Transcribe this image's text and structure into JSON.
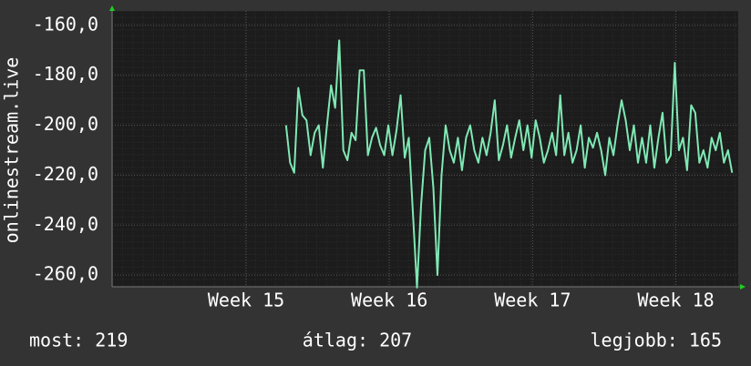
{
  "chart_data": {
    "type": "line",
    "ylabel": "onlinestream.live",
    "color": "#7fe8b4",
    "x": [
      8.5,
      8.7,
      8.9,
      9.1,
      9.3,
      9.5,
      9.7,
      9.9,
      10.1,
      10.3,
      10.5,
      10.7,
      10.9,
      11.1,
      11.3,
      11.5,
      11.7,
      11.9,
      12.1,
      12.3,
      12.5,
      12.7,
      12.9,
      13.1,
      13.3,
      13.5,
      13.7,
      13.9,
      14.1,
      14.3,
      14.5,
      14.7,
      14.9,
      15.1,
      15.3,
      15.5,
      15.7,
      15.9,
      16.1,
      16.3,
      16.5,
      16.7,
      16.9,
      17.1,
      17.3,
      17.5,
      17.7,
      17.9,
      18.1,
      18.3,
      18.5,
      18.7,
      18.9,
      19.1,
      19.3,
      19.5,
      19.7,
      19.9,
      20.1,
      20.3,
      20.5,
      20.7,
      20.9,
      21.1,
      21.3,
      21.5,
      21.7,
      21.9,
      22.1,
      22.3,
      22.5,
      22.7,
      22.9,
      23.1,
      23.3,
      23.5,
      23.7,
      23.9,
      24.1,
      24.3,
      24.5,
      24.7,
      24.9,
      25.1,
      25.3,
      25.5,
      25.7,
      25.9,
      26.1,
      26.3,
      26.5,
      26.7,
      26.9,
      27.1,
      27.3,
      27.5,
      27.7,
      27.9,
      28.1,
      28.3,
      28.5,
      28.7,
      28.9,
      29.1,
      29.3,
      29.5,
      29.7,
      29.9,
      30.1,
      30.3
    ],
    "values": [
      -200,
      -215,
      -219,
      -185,
      -196,
      -198,
      -212,
      -203,
      -200,
      -217,
      -200,
      -184,
      -193,
      -166,
      -210,
      -214,
      -203,
      -206,
      -178,
      -178,
      -212,
      -205,
      -201,
      -208,
      -212,
      -200,
      -212,
      -202,
      -188,
      -213,
      -205,
      -235,
      -265,
      -232,
      -210,
      -205,
      -225,
      -260,
      -220,
      -200,
      -210,
      -215,
      -205,
      -218,
      -205,
      -200,
      -210,
      -215,
      -205,
      -212,
      -203,
      -190,
      -214,
      -208,
      -200,
      -213,
      -205,
      -198,
      -210,
      -200,
      -213,
      -198,
      -205,
      -215,
      -210,
      -203,
      -212,
      -188,
      -212,
      -203,
      -215,
      -210,
      -200,
      -217,
      -205,
      -209,
      -203,
      -210,
      -220,
      -205,
      -212,
      -200,
      -190,
      -198,
      -210,
      -200,
      -215,
      -205,
      -215,
      -200,
      -217,
      -205,
      -195,
      -215,
      -212,
      -175,
      -210,
      -205,
      -218,
      -192,
      -195,
      -215,
      -210,
      -217,
      -205,
      -210,
      -203,
      -215,
      -210,
      -219
    ],
    "xlim": [
      0,
      30.6
    ],
    "xticks": [
      {
        "value": 6.55,
        "label": "Week 15"
      },
      {
        "value": 13.55,
        "label": "Week 16"
      },
      {
        "value": 20.55,
        "label": "Week 17"
      },
      {
        "value": 27.55,
        "label": "Week 18"
      }
    ],
    "ylim": [
      -264.7,
      -154.2
    ],
    "yticks": [
      {
        "value": -160,
        "label": "-160,0"
      },
      {
        "value": -180,
        "label": "-180,0"
      },
      {
        "value": -200,
        "label": "-200,0"
      },
      {
        "value": -220,
        "label": "-220,0"
      },
      {
        "value": -240,
        "label": "-240,0"
      },
      {
        "value": -260,
        "label": "-260,0"
      }
    ],
    "grid": true,
    "footer": [
      "most: 219",
      "átlag: 207",
      "legjobb: 165"
    ]
  }
}
